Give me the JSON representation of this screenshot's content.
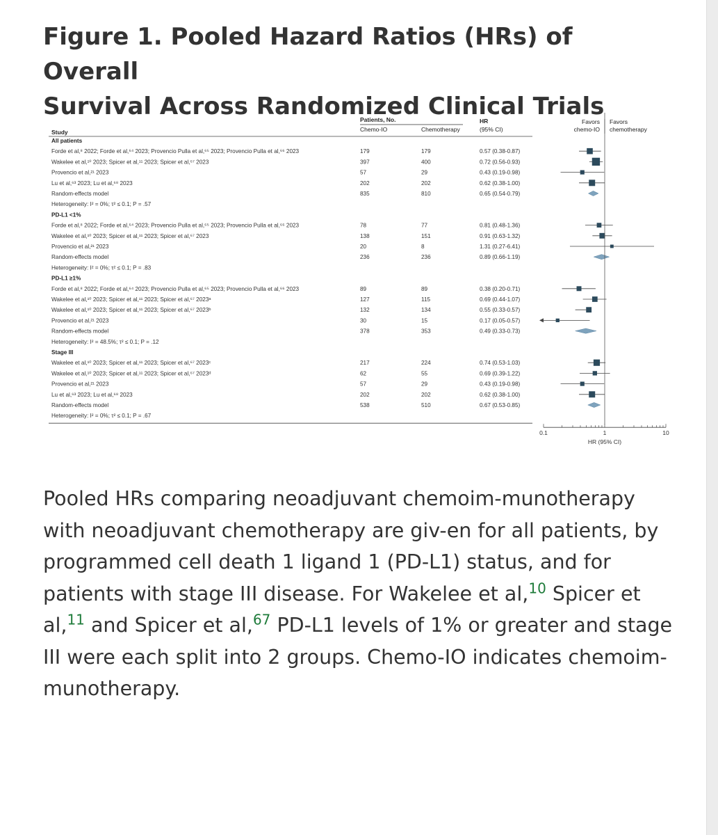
{
  "figure": {
    "title_line1": "Figure 1.  Pooled Hazard Ratios (HRs) of Overall",
    "title_line2": "Survival Across Randomized Clinical Trials"
  },
  "table": {
    "header": {
      "study": "Study",
      "patients_no": "Patients, No.",
      "chemo_io": "Chemo-IO",
      "chemotherapy": "Chemotherapy",
      "hr": "HR",
      "ci": "(95% CI)",
      "favors_left_1": "Favors",
      "favors_left_2": "chemo-IO",
      "favors_right_1": "Favors",
      "favors_right_2": "chemotherapy"
    },
    "groups": [
      {
        "label": "All patients",
        "rows": [
          {
            "study": "Forde et al,⁸ 2022; Forde et al,⁶⁴ 2023; Provencio Pulla et al,⁶⁵ 2023; Provencio Pulla et al,⁶⁶ 2023",
            "chemo_io": "179",
            "chemo": "179",
            "hr_text": "0.57 (0.38-0.87)"
          },
          {
            "study": "Wakelee et al,¹⁰ 2023; Spicer et al,¹¹ 2023; Spicer et al,⁶⁷ 2023",
            "chemo_io": "397",
            "chemo": "400",
            "hr_text": "0.72 (0.56-0.93)"
          },
          {
            "study": "Provencio et al,²¹ 2023",
            "chemo_io": "57",
            "chemo": "29",
            "hr_text": "0.43 (0.19-0.98)"
          },
          {
            "study": "Lu et al,⁶³ 2023; Lu et al,⁶⁸ 2023",
            "chemo_io": "202",
            "chemo": "202",
            "hr_text": "0.62 (0.38-1.00)"
          },
          {
            "study": "Random-effects model",
            "chemo_io": "835",
            "chemo": "810",
            "hr_text": "0.65 (0.54-0.79)"
          }
        ],
        "heterogeneity": "Heterogeneity: I² = 0%; τ² ≤ 0.1; P = .57"
      },
      {
        "label": "PD-L1 <1%",
        "rows": [
          {
            "study": "Forde et al,⁸ 2022; Forde et al,⁶⁴ 2023; Provencio Pulla et al,⁶⁵ 2023; Provencio Pulla et al,⁶⁶ 2023",
            "chemo_io": "78",
            "chemo": "77",
            "hr_text": "0.81 (0.48-1.36)"
          },
          {
            "study": "Wakelee et al,¹⁰ 2023; Spicer et al,¹¹ 2023; Spicer et al,⁶⁷ 2023",
            "chemo_io": "138",
            "chemo": "151",
            "hr_text": "0.91 (0.63-1.32)"
          },
          {
            "study": "Provencio et al,²¹ 2023",
            "chemo_io": "20",
            "chemo": "8",
            "hr_text": "1.31 (0.27-6.41)"
          },
          {
            "study": "Random-effects model",
            "chemo_io": "236",
            "chemo": "236",
            "hr_text": "0.89 (0.66-1.19)"
          }
        ],
        "heterogeneity": "Heterogeneity: I² = 0%; τ² ≤ 0.1; P = .83"
      },
      {
        "label": "PD-L1 ≥1%",
        "rows": [
          {
            "study": "Forde et al,⁸ 2022; Forde et al,⁶⁴ 2023; Provencio Pulla et al,⁶⁵ 2023; Provencio Pulla et al,⁶⁶ 2023",
            "chemo_io": "89",
            "chemo": "89",
            "hr_text": "0.38 (0.20-0.71)"
          },
          {
            "study": "Wakelee et al,¹⁰ 2023; Spicer et al,¹¹ 2023; Spicer et al,⁶⁷ 2023ᵃ",
            "chemo_io": "127",
            "chemo": "115",
            "hr_text": "0.69 (0.44-1.07)"
          },
          {
            "study": "Wakelee et al,¹⁰ 2023; Spicer et al,¹¹ 2023; Spicer et al,⁶⁷ 2023ᵇ",
            "chemo_io": "132",
            "chemo": "134",
            "hr_text": "0.55 (0.33-0.57)"
          },
          {
            "study": "Provencio et al,²¹ 2023",
            "chemo_io": "30",
            "chemo": "15",
            "hr_text": "0.17 (0.05-0.57)"
          },
          {
            "study": "Random-effects model",
            "chemo_io": "378",
            "chemo": "353",
            "hr_text": "0.49 (0.33-0.73)"
          }
        ],
        "heterogeneity": "Heterogeneity: I² = 48.5%; τ² ≤ 0.1; P = .12"
      },
      {
        "label": "Stage III",
        "rows": [
          {
            "study": "Wakelee et al,¹⁰ 2023; Spicer et al,¹¹ 2023; Spicer et al,⁶⁷ 2023ᶜ",
            "chemo_io": "217",
            "chemo": "224",
            "hr_text": "0.74 (0.53-1.03)"
          },
          {
            "study": "Wakelee et al,¹⁰ 2023; Spicer et al,¹¹ 2023; Spicer et al,⁶⁷ 2023ᵈ",
            "chemo_io": "62",
            "chemo": "55",
            "hr_text": "0.69 (0.39-1.22)"
          },
          {
            "study": "Provencio et al,²¹ 2023",
            "chemo_io": "57",
            "chemo": "29",
            "hr_text": "0.43 (0.19-0.98)"
          },
          {
            "study": "Lu et al,⁶³ 2023; Lu et al,⁶⁸ 2023",
            "chemo_io": "202",
            "chemo": "202",
            "hr_text": "0.62 (0.38-1.00)"
          },
          {
            "study": "Random-effects model",
            "chemo_io": "538",
            "chemo": "510",
            "hr_text": "0.67 (0.53-0.85)"
          }
        ],
        "heterogeneity": "Heterogeneity: I² = 0%; τ² ≤ 0.1; P = .67"
      }
    ]
  },
  "chart_data": {
    "type": "forest",
    "xlabel": "HR (95% CI)",
    "xscale": "log",
    "xlim": [
      0.1,
      10
    ],
    "tick_labels": [
      "0.1",
      "1",
      "10"
    ],
    "reference_line": 1,
    "colors": {
      "marker": "#2c4a5c",
      "diamond": "#7fa3bd",
      "line": "#444444"
    },
    "series": [
      {
        "group": "All patients",
        "hr": [
          0.57,
          0.72,
          0.43,
          0.62
        ],
        "lo": [
          0.38,
          0.56,
          0.19,
          0.38
        ],
        "hi": [
          0.87,
          0.93,
          0.98,
          1.0
        ],
        "weight": [
          179,
          397,
          57,
          202
        ],
        "pooled": {
          "hr": 0.65,
          "lo": 0.54,
          "hi": 0.79
        }
      },
      {
        "group": "PD-L1 <1%",
        "hr": [
          0.81,
          0.91,
          1.31
        ],
        "lo": [
          0.48,
          0.63,
          0.27
        ],
        "hi": [
          1.36,
          1.32,
          6.41
        ],
        "weight": [
          78,
          138,
          20
        ],
        "pooled": {
          "hr": 0.89,
          "lo": 0.66,
          "hi": 1.19
        }
      },
      {
        "group": "PD-L1 ≥1%",
        "hr": [
          0.38,
          0.69,
          0.55,
          0.17
        ],
        "lo": [
          0.2,
          0.44,
          0.33,
          0.05
        ],
        "hi": [
          0.71,
          1.07,
          0.57,
          0.57
        ],
        "weight": [
          89,
          127,
          132,
          30
        ],
        "pooled": {
          "hr": 0.49,
          "lo": 0.33,
          "hi": 0.73
        }
      },
      {
        "group": "Stage III",
        "hr": [
          0.74,
          0.69,
          0.43,
          0.62
        ],
        "lo": [
          0.53,
          0.39,
          0.19,
          0.38
        ],
        "hi": [
          1.03,
          1.22,
          0.98,
          1.0
        ],
        "weight": [
          217,
          62,
          57,
          202
        ],
        "pooled": {
          "hr": 0.67,
          "lo": 0.53,
          "hi": 0.85
        }
      }
    ]
  },
  "caption": {
    "part1": "Pooled HRs comparing neoadjuvant chemoim-munotherapy with neoadjuvant chemotherapy are giv-en for all patients, by programmed cell death 1 ligand 1 (PD-L1) status, and for patients with stage III disease. For Wakelee et al,",
    "ref1": "10",
    "part2": " Spicer et al,",
    "ref2": "11",
    "part3": " and Spicer et al,",
    "ref3": "67",
    "part4": " PD-L1 levels of 1% or greater and stage III were each split into 2 groups. Chemo-IO indicates chemoim-munotherapy."
  }
}
